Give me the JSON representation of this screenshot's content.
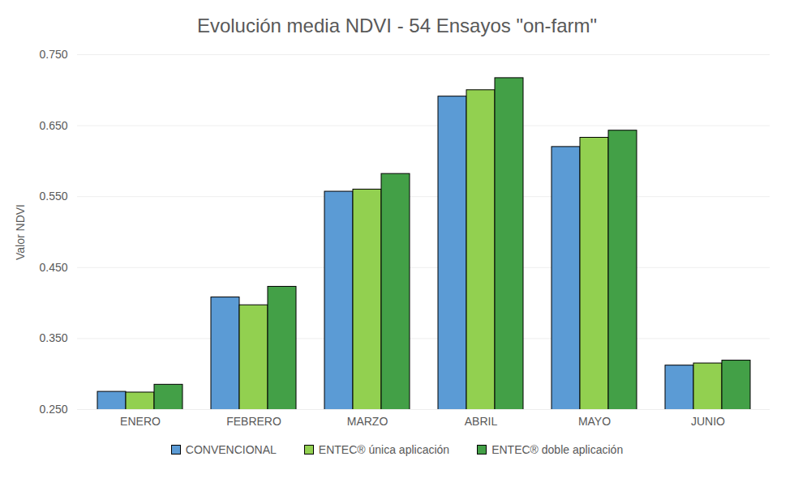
{
  "chart_data": {
    "type": "bar",
    "title": "Evolución media NDVI - 54 Ensayos \"on-farm\"",
    "ylabel": "Valor NDVI",
    "categories": [
      "ENERO",
      "FEBRERO",
      "MARZO",
      "ABRIL",
      "MAYO",
      "JUNIO"
    ],
    "series": [
      {
        "name": "CONVENCIONAL",
        "color": "#5b9bd5",
        "values": [
          0.275,
          0.408,
          0.557,
          0.691,
          0.62,
          0.312
        ]
      },
      {
        "name": "ENTEC® única aplicación",
        "color": "#92d050",
        "values": [
          0.274,
          0.397,
          0.56,
          0.7,
          0.633,
          0.315
        ]
      },
      {
        "name": "ENTEC® doble aplicación",
        "color": "#43a047",
        "values": [
          0.285,
          0.423,
          0.582,
          0.717,
          0.643,
          0.319
        ]
      }
    ],
    "ylim": [
      0.25,
      0.75
    ],
    "yticks": [
      {
        "value": 0.25,
        "label": "0.250"
      },
      {
        "value": 0.35,
        "label": "0.350"
      },
      {
        "value": 0.45,
        "label": "0.450"
      },
      {
        "value": 0.55,
        "label": "0.550"
      },
      {
        "value": 0.65,
        "label": "0.650"
      },
      {
        "value": 0.75,
        "label": "0.750"
      }
    ],
    "grid": true,
    "legend": "bottom"
  }
}
